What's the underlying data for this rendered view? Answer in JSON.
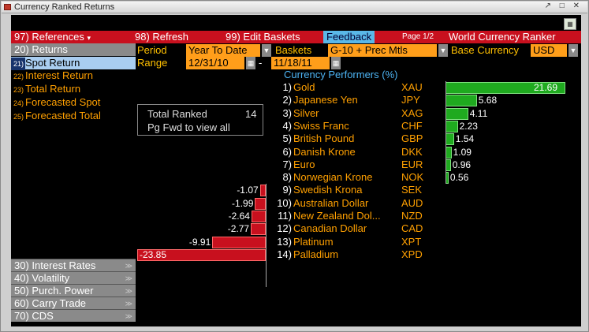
{
  "window": {
    "title": "Currency Ranked Returns"
  },
  "menu": {
    "references": "97) References",
    "references_arrow": "▾",
    "refresh": "98) Refresh",
    "edit_baskets": "99) Edit Baskets",
    "feedback": "Feedback",
    "page": "Page 1/2",
    "app_title": "World Currency Ranker"
  },
  "controls": {
    "period_label": "Period",
    "period_value": "Year To Date",
    "baskets_label": "Baskets",
    "baskets_value": "G-10 + Prec Mtls",
    "base_currency_label": "Base Currency",
    "base_currency_value": "USD",
    "range_label": "Range",
    "range_start": "12/31/10",
    "range_sep": "-",
    "range_end": "11/18/11"
  },
  "sidebar": {
    "header": "20)   Returns",
    "items": [
      {
        "num": "21)",
        "label": "Spot Return",
        "selected": true
      },
      {
        "num": "22)",
        "label": "Interest Return",
        "selected": false
      },
      {
        "num": "23)",
        "label": "Total Return",
        "selected": false
      },
      {
        "num": "24)",
        "label": "Forecasted Spot",
        "selected": false
      },
      {
        "num": "25)",
        "label": "Forecasted Total",
        "selected": false
      }
    ],
    "categories": [
      {
        "label": "30)    Interest Rates"
      },
      {
        "label": "40)    Volatility"
      },
      {
        "label": "50)    Purch. Power"
      },
      {
        "label": "60)    Carry Trade"
      },
      {
        "label": "70)    CDS"
      }
    ]
  },
  "info_box": {
    "total_label": "Total Ranked",
    "total_value": "14",
    "hint": "Pg Fwd to view all"
  },
  "table": {
    "header": "Currency Performers   (%)"
  },
  "chart_data": {
    "type": "bar",
    "categories": [
      "Gold",
      "Japanese Yen",
      "Silver",
      "Swiss Franc",
      "British Pound",
      "Danish Krone",
      "Euro",
      "Norwegian Krone",
      "Swedish Krona",
      "Australian Dollar",
      "New Zealand Dol...",
      "Canadian Dollar",
      "Platinum",
      "Palladium"
    ],
    "ranks": [
      "1)",
      "2)",
      "3)",
      "4)",
      "5)",
      "6)",
      "7)",
      "8)",
      "9)",
      "10)",
      "11)",
      "12)",
      "13)",
      "14)"
    ],
    "codes": [
      "XAU",
      "JPY",
      "XAG",
      "CHF",
      "GBP",
      "DKK",
      "EUR",
      "NOK",
      "SEK",
      "AUD",
      "NZD",
      "CAD",
      "XPT",
      "XPD"
    ],
    "values": [
      21.69,
      5.68,
      4.11,
      2.23,
      1.54,
      1.09,
      0.96,
      0.56,
      -1.07,
      -1.99,
      -2.64,
      -2.77,
      -9.91,
      -23.85
    ],
    "labels": [
      "21.69",
      "5.68",
      "4.11",
      "2.23",
      "1.54",
      "1.09",
      "0.96",
      "0.56",
      "-1.07",
      "-1.99",
      "-2.64",
      "-2.77",
      "-9.91",
      "-23.85"
    ],
    "title": "Currency Performers",
    "ylabel": "(%)",
    "colors": {
      "positive": "#1faa1f",
      "negative": "#c8101e"
    }
  }
}
